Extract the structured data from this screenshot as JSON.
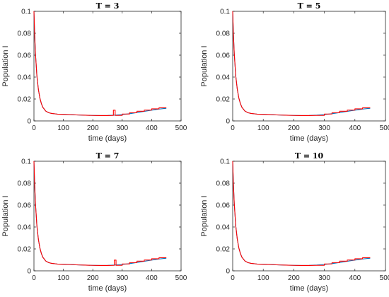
{
  "chart_data": [
    {
      "type": "line",
      "title": "T = 3",
      "xlabel": "time (days)",
      "ylabel": "Population I",
      "xlim": [
        0,
        500
      ],
      "ylim": [
        0,
        0.1
      ],
      "xticks": [
        0,
        100,
        200,
        300,
        400,
        500
      ],
      "yticks": [
        0,
        0.02,
        0.04,
        0.06,
        0.08,
        0.1
      ],
      "xtick_labels": [
        "0",
        "100",
        "200",
        "300",
        "400",
        "500"
      ],
      "ytick_labels": [
        "0",
        "0.02",
        "0.04",
        "0.06",
        "0.08",
        "0.1"
      ],
      "grid": false,
      "series": [
        {
          "color": "#0072BD",
          "x": [
            0,
            2,
            5,
            10,
            15,
            20,
            25,
            30,
            40,
            50,
            60,
            80,
            100,
            125,
            150,
            175,
            200,
            225,
            250,
            275,
            300,
            325,
            350,
            375,
            400,
            425,
            450
          ],
          "y": [
            0.1,
            0.082,
            0.062,
            0.041,
            0.029,
            0.021,
            0.016,
            0.0125,
            0.009,
            0.0075,
            0.0068,
            0.0062,
            0.006,
            0.0057,
            0.0054,
            0.0052,
            0.005,
            0.0049,
            0.005,
            0.0053,
            0.0058,
            0.0066,
            0.0076,
            0.0087,
            0.0098,
            0.0108,
            0.0115
          ]
        },
        {
          "color": "#FF0000",
          "x": [
            0,
            2,
            5,
            10,
            15,
            20,
            25,
            30,
            40,
            50,
            60,
            80,
            100,
            125,
            150,
            175,
            200,
            225,
            250,
            270,
            270,
            276,
            276,
            300,
            300,
            325,
            325,
            350,
            350,
            375,
            375,
            400,
            400,
            425,
            425,
            450
          ],
          "y": [
            0.1,
            0.082,
            0.062,
            0.041,
            0.029,
            0.021,
            0.016,
            0.0125,
            0.009,
            0.0075,
            0.0068,
            0.0062,
            0.006,
            0.0058,
            0.0054,
            0.0052,
            0.005,
            0.0049,
            0.0049,
            0.005,
            0.0098,
            0.0098,
            0.005,
            0.005,
            0.0063,
            0.0063,
            0.0075,
            0.0075,
            0.0088,
            0.0088,
            0.0099,
            0.0099,
            0.011,
            0.011,
            0.012,
            0.012
          ]
        }
      ]
    },
    {
      "type": "line",
      "title": "T = 5",
      "xlabel": "time (days)",
      "ylabel": "Population I",
      "xlim": [
        0,
        500
      ],
      "ylim": [
        0,
        0.1
      ],
      "xticks": [
        0,
        100,
        200,
        300,
        400,
        500
      ],
      "yticks": [
        0,
        0.02,
        0.04,
        0.06,
        0.08,
        0.1
      ],
      "xtick_labels": [
        "0",
        "100",
        "200",
        "300",
        "400",
        "500"
      ],
      "ytick_labels": [
        "0",
        "0.02",
        "0.04",
        "0.06",
        "0.08",
        "0.1"
      ],
      "grid": false,
      "series": [
        {
          "color": "#0072BD",
          "x": [
            0,
            2,
            5,
            10,
            15,
            20,
            25,
            30,
            40,
            50,
            60,
            80,
            100,
            125,
            150,
            175,
            200,
            225,
            250,
            275,
            300,
            325,
            350,
            375,
            400,
            425,
            450
          ],
          "y": [
            0.1,
            0.082,
            0.062,
            0.041,
            0.029,
            0.021,
            0.016,
            0.0125,
            0.009,
            0.0075,
            0.0068,
            0.0062,
            0.006,
            0.0057,
            0.0054,
            0.0052,
            0.005,
            0.0049,
            0.005,
            0.0053,
            0.0058,
            0.0066,
            0.0076,
            0.0087,
            0.0098,
            0.0108,
            0.0115
          ]
        },
        {
          "color": "#FF0000",
          "x": [
            0,
            2,
            5,
            10,
            15,
            20,
            25,
            30,
            40,
            50,
            60,
            80,
            100,
            125,
            150,
            175,
            200,
            225,
            250,
            275,
            300,
            300,
            325,
            325,
            350,
            350,
            375,
            375,
            400,
            400,
            425,
            425,
            450
          ],
          "y": [
            0.1,
            0.082,
            0.062,
            0.041,
            0.029,
            0.021,
            0.016,
            0.0125,
            0.009,
            0.0075,
            0.0068,
            0.0062,
            0.006,
            0.0058,
            0.0054,
            0.0052,
            0.005,
            0.0049,
            0.0049,
            0.005,
            0.005,
            0.0063,
            0.0063,
            0.0075,
            0.0075,
            0.0088,
            0.0088,
            0.0099,
            0.0099,
            0.011,
            0.011,
            0.012,
            0.012
          ]
        }
      ]
    },
    {
      "type": "line",
      "title": "T = 7",
      "xlabel": "time (days)",
      "ylabel": "Population I",
      "xlim": [
        0,
        500
      ],
      "ylim": [
        0,
        0.1
      ],
      "xticks": [
        0,
        100,
        200,
        300,
        400,
        500
      ],
      "yticks": [
        0,
        0.02,
        0.04,
        0.06,
        0.08,
        0.1
      ],
      "xtick_labels": [
        "0",
        "100",
        "200",
        "300",
        "400",
        "500"
      ],
      "ytick_labels": [
        "0",
        "0.02",
        "0.04",
        "0.06",
        "0.08",
        "0.1"
      ],
      "grid": false,
      "series": [
        {
          "color": "#0072BD",
          "x": [
            0,
            2,
            5,
            10,
            15,
            20,
            25,
            30,
            40,
            50,
            60,
            80,
            100,
            125,
            150,
            175,
            200,
            225,
            250,
            275,
            300,
            325,
            350,
            375,
            400,
            425,
            450
          ],
          "y": [
            0.1,
            0.082,
            0.062,
            0.041,
            0.029,
            0.021,
            0.016,
            0.0125,
            0.009,
            0.0075,
            0.0068,
            0.0062,
            0.006,
            0.0057,
            0.0054,
            0.0052,
            0.005,
            0.0049,
            0.005,
            0.0053,
            0.0058,
            0.0066,
            0.0076,
            0.0087,
            0.0098,
            0.0108,
            0.0115
          ]
        },
        {
          "color": "#FF0000",
          "x": [
            0,
            2,
            5,
            10,
            15,
            20,
            25,
            30,
            40,
            50,
            60,
            80,
            100,
            125,
            150,
            175,
            200,
            225,
            250,
            273,
            273,
            279,
            279,
            300,
            300,
            325,
            325,
            350,
            350,
            375,
            375,
            400,
            400,
            425,
            425,
            450
          ],
          "y": [
            0.1,
            0.082,
            0.062,
            0.041,
            0.029,
            0.021,
            0.016,
            0.0125,
            0.009,
            0.0075,
            0.0068,
            0.0062,
            0.006,
            0.0058,
            0.0054,
            0.0052,
            0.005,
            0.0049,
            0.0049,
            0.005,
            0.0098,
            0.0098,
            0.005,
            0.005,
            0.0063,
            0.0063,
            0.0075,
            0.0075,
            0.0088,
            0.0088,
            0.0099,
            0.0099,
            0.011,
            0.011,
            0.012,
            0.012
          ]
        }
      ]
    },
    {
      "type": "line",
      "title": "T = 10",
      "xlabel": "time (days)",
      "ylabel": "Population I",
      "xlim": [
        0,
        500
      ],
      "ylim": [
        0,
        0.1
      ],
      "xticks": [
        0,
        100,
        200,
        300,
        400,
        500
      ],
      "yticks": [
        0,
        0.02,
        0.04,
        0.06,
        0.08,
        0.1
      ],
      "xtick_labels": [
        "0",
        "100",
        "200",
        "300",
        "400",
        "500"
      ],
      "ytick_labels": [
        "0",
        "0.02",
        "0.04",
        "0.06",
        "0.08",
        "0.1"
      ],
      "grid": false,
      "series": [
        {
          "color": "#0072BD",
          "x": [
            0,
            2,
            5,
            10,
            15,
            20,
            25,
            30,
            40,
            50,
            60,
            80,
            100,
            125,
            150,
            175,
            200,
            225,
            250,
            275,
            300,
            325,
            350,
            375,
            400,
            425,
            450
          ],
          "y": [
            0.1,
            0.082,
            0.062,
            0.041,
            0.029,
            0.021,
            0.016,
            0.0125,
            0.009,
            0.0075,
            0.0068,
            0.0062,
            0.006,
            0.0057,
            0.0054,
            0.0052,
            0.005,
            0.0049,
            0.005,
            0.0053,
            0.0058,
            0.0066,
            0.0076,
            0.0087,
            0.0098,
            0.0108,
            0.0115
          ]
        },
        {
          "color": "#FF0000",
          "x": [
            0,
            2,
            5,
            10,
            15,
            20,
            25,
            30,
            40,
            50,
            60,
            80,
            100,
            125,
            150,
            175,
            200,
            225,
            250,
            275,
            300,
            300,
            325,
            325,
            350,
            350,
            375,
            375,
            400,
            400,
            425,
            425,
            450
          ],
          "y": [
            0.1,
            0.082,
            0.062,
            0.041,
            0.029,
            0.021,
            0.016,
            0.0125,
            0.009,
            0.0075,
            0.0068,
            0.0062,
            0.006,
            0.0058,
            0.0054,
            0.0052,
            0.005,
            0.0049,
            0.0049,
            0.005,
            0.005,
            0.0063,
            0.0063,
            0.0075,
            0.0075,
            0.0088,
            0.0088,
            0.0099,
            0.0099,
            0.011,
            0.011,
            0.012,
            0.012
          ]
        }
      ]
    }
  ]
}
